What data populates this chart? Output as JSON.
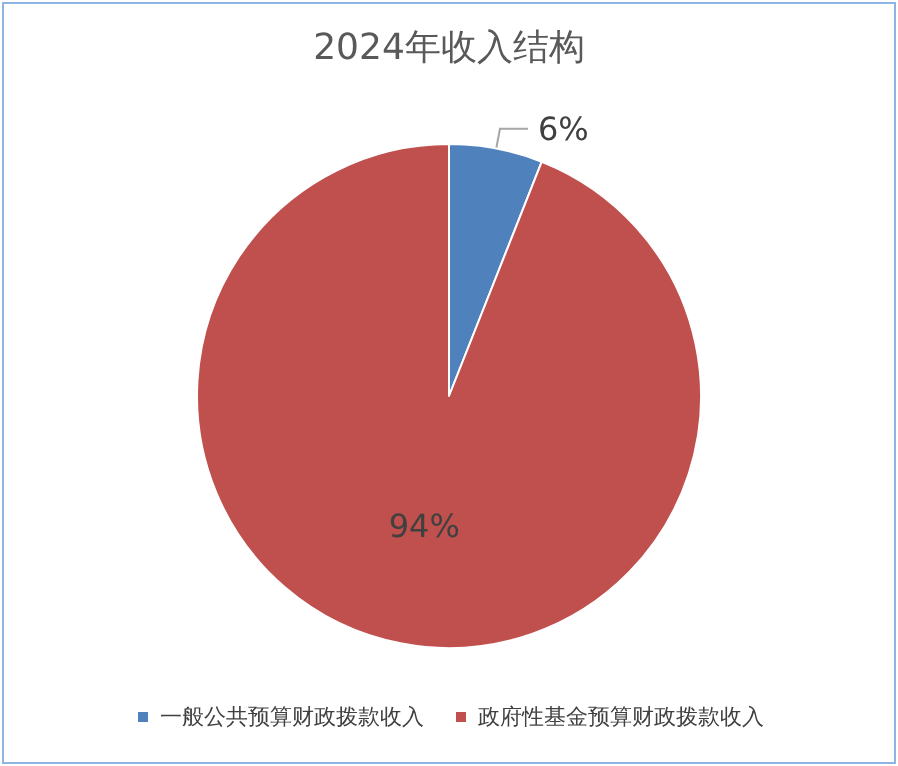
{
  "chart_data": {
    "type": "pie",
    "title": "2024年收入结构",
    "categories": [
      "一般公共预算财政拨款收入",
      "政府性基金预算财政拨款收入"
    ],
    "values": [
      6,
      94
    ],
    "value_labels": [
      "6%",
      "94%"
    ],
    "colors": [
      "#4f81bd",
      "#c0504d"
    ],
    "legend": "bottom"
  }
}
